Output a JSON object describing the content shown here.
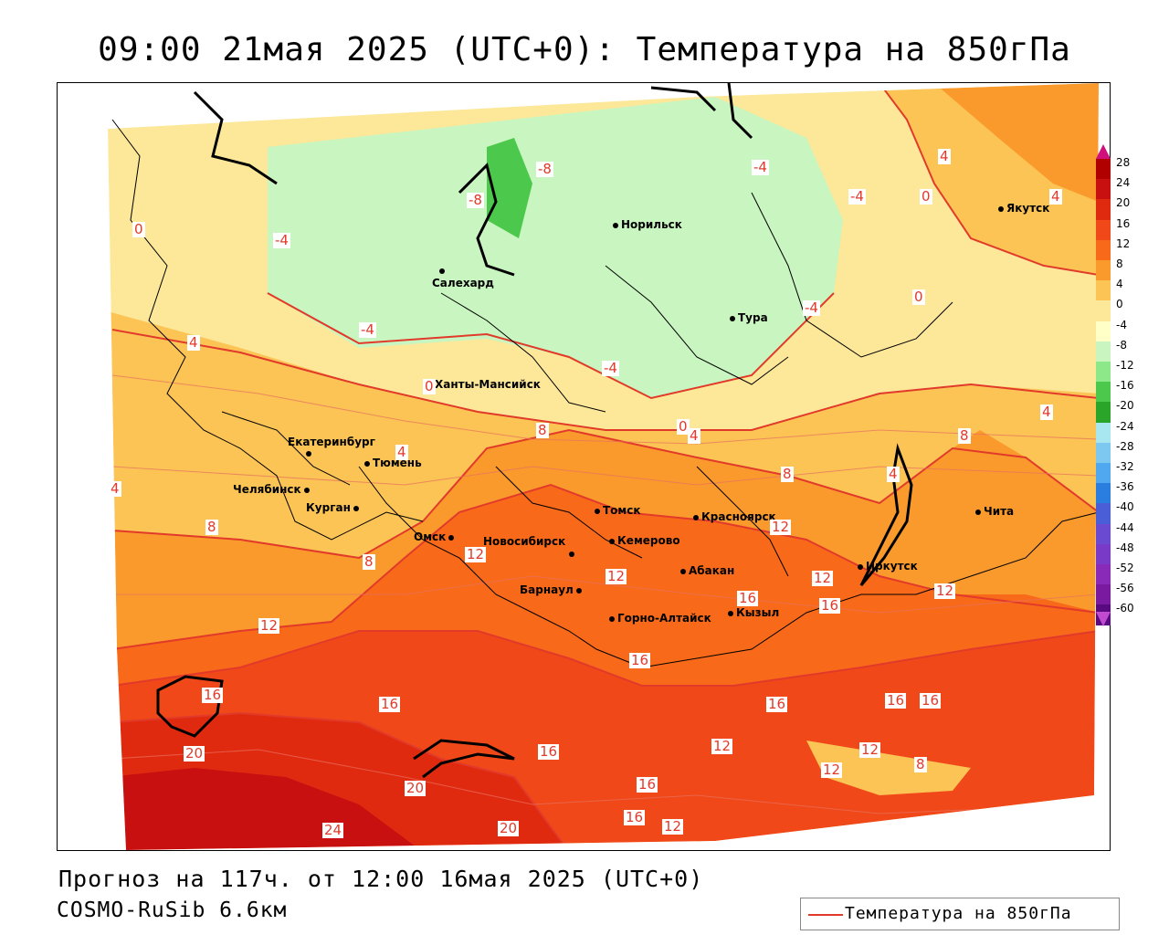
{
  "header": {
    "title": "09:00 21мая 2025 (UTC+0): Температура на 850гПа"
  },
  "footer": {
    "forecast": "Прогноз на 117ч. от 12:00 16мая 2025 (UTC+0)",
    "model": "COSMO-RuSib 6.6км"
  },
  "legend": {
    "line_label": "Температура на 850гПа",
    "line_color": "#e23a2a"
  },
  "color_scale": {
    "labels": [
      "28",
      "24",
      "20",
      "16",
      "12",
      "8",
      "4",
      "0",
      "-4",
      "-8",
      "-12",
      "-16",
      "-20",
      "-24",
      "-28",
      "-32",
      "-36",
      "-40",
      "-44",
      "-48",
      "-52",
      "-56",
      "-60"
    ],
    "colors": [
      "#b00000",
      "#c81010",
      "#e02a10",
      "#f04818",
      "#f86a1a",
      "#fa9a2c",
      "#fbc455",
      "#fde89a",
      "#ffffc8",
      "#c8f5c0",
      "#8de88a",
      "#4cc94c",
      "#2aa52a",
      "#a8e6f0",
      "#7cc8f0",
      "#4fa8f0",
      "#2a7ee0",
      "#4a5ed8",
      "#6a4ad0",
      "#7a3ac8",
      "#8a2ab8",
      "#7a1aa0",
      "#5a0a80"
    ],
    "top_color": "#d0107a",
    "bottom_color": "#c04ad0"
  },
  "cities": [
    {
      "name": "Норильск"
    },
    {
      "name": "Салехард"
    },
    {
      "name": "Тура"
    },
    {
      "name": "Якутск"
    },
    {
      "name": "Ханты-Мансийск"
    },
    {
      "name": "Екатеринбург"
    },
    {
      "name": "Тюмень"
    },
    {
      "name": "Челябинск"
    },
    {
      "name": "Курган"
    },
    {
      "name": "Омск"
    },
    {
      "name": "Новосибирск"
    },
    {
      "name": "Томск"
    },
    {
      "name": "Красноярск"
    },
    {
      "name": "Кемерово"
    },
    {
      "name": "Абакан"
    },
    {
      "name": "Барнаул"
    },
    {
      "name": "Горно-Алтайск"
    },
    {
      "name": "Кызыл"
    },
    {
      "name": "Иркутск"
    },
    {
      "name": "Чита"
    }
  ],
  "isotherm_labels": [
    "-8",
    "-8",
    "-4",
    "-4",
    "-4",
    "-4",
    "-4",
    "-4",
    "0",
    "0",
    "0",
    "0",
    "0",
    "4",
    "4",
    "4",
    "4",
    "4",
    "4",
    "4",
    "4",
    "8",
    "8",
    "8",
    "8",
    "8",
    "12",
    "12",
    "12",
    "12",
    "12",
    "12",
    "12",
    "12",
    "12",
    "16",
    "16",
    "16",
    "16",
    "16",
    "16",
    "16",
    "16",
    "16",
    "16",
    "20",
    "20",
    "20",
    "24",
    "8",
    "12",
    "16"
  ]
}
